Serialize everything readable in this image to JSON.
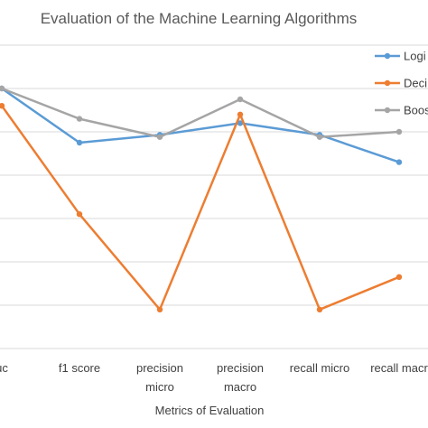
{
  "chart_data": {
    "type": "line",
    "title": "Evaluation of the Machine Learning Algorithms",
    "xlabel": "Metrics of Evaluation",
    "ylabel": "",
    "categories": [
      "uc",
      "f1 score",
      "precision micro",
      "precision macro",
      "recall micro",
      "recall macr"
    ],
    "ylim": [
      0,
      7
    ],
    "grid": true,
    "legend_position": "right",
    "series": [
      {
        "name": "Logi",
        "color": "#5b9bd5",
        "values": [
          6.0,
          4.75,
          4.93,
          5.2,
          4.93,
          4.3
        ]
      },
      {
        "name": "Deci",
        "color": "#ed7d31",
        "values": [
          5.6,
          3.1,
          0.9,
          5.4,
          0.9,
          1.65
        ]
      },
      {
        "name": "Boos",
        "color": "#a5a5a5",
        "values": [
          6.0,
          5.3,
          4.88,
          5.75,
          4.88,
          5.0
        ]
      }
    ]
  }
}
